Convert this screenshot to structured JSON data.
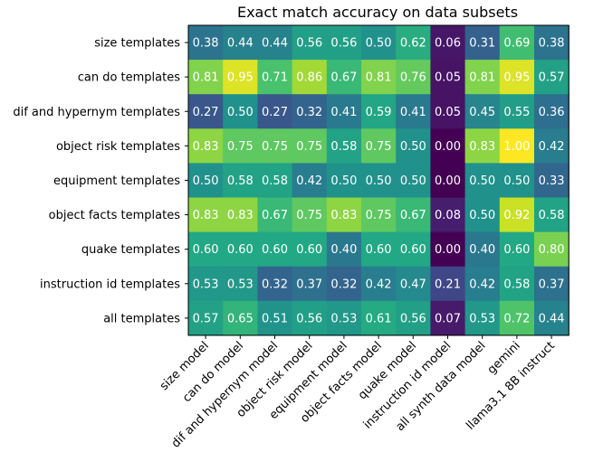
{
  "chart_data": {
    "type": "heatmap",
    "title": "Exact match accuracy on data subsets",
    "rows": [
      "size templates",
      "can do templates",
      "dif and hypernym templates",
      "object risk templates",
      "equipment templates",
      "object facts templates",
      "quake templates",
      "instruction id templates",
      "all templates"
    ],
    "columns": [
      "size model",
      "can do model",
      "dif and hypernym model",
      "object risk model",
      "equipment model",
      "object facts model",
      "quake model",
      "instruction id model",
      "all synth data model",
      "gemini",
      "llama3.1 8B instruct"
    ],
    "values": [
      [
        0.38,
        0.44,
        0.44,
        0.56,
        0.56,
        0.5,
        0.62,
        0.06,
        0.31,
        0.69,
        0.38
      ],
      [
        0.81,
        0.95,
        0.71,
        0.86,
        0.67,
        0.81,
        0.76,
        0.05,
        0.81,
        0.95,
        0.57
      ],
      [
        0.27,
        0.5,
        0.27,
        0.32,
        0.41,
        0.59,
        0.41,
        0.05,
        0.45,
        0.55,
        0.36
      ],
      [
        0.83,
        0.75,
        0.75,
        0.75,
        0.58,
        0.75,
        0.5,
        0.0,
        0.83,
        1.0,
        0.42
      ],
      [
        0.5,
        0.58,
        0.58,
        0.42,
        0.5,
        0.5,
        0.5,
        0.0,
        0.5,
        0.5,
        0.33
      ],
      [
        0.83,
        0.83,
        0.67,
        0.75,
        0.83,
        0.75,
        0.67,
        0.08,
        0.5,
        0.92,
        0.58
      ],
      [
        0.6,
        0.6,
        0.6,
        0.6,
        0.4,
        0.6,
        0.6,
        0.0,
        0.4,
        0.6,
        0.8
      ],
      [
        0.53,
        0.53,
        0.32,
        0.37,
        0.32,
        0.42,
        0.47,
        0.21,
        0.42,
        0.58,
        0.37
      ],
      [
        0.57,
        0.65,
        0.51,
        0.56,
        0.53,
        0.61,
        0.56,
        0.07,
        0.53,
        0.72,
        0.44
      ]
    ],
    "colormap": "viridis",
    "value_range": [
      0.0,
      1.0
    ],
    "value_format": "two decimals"
  }
}
